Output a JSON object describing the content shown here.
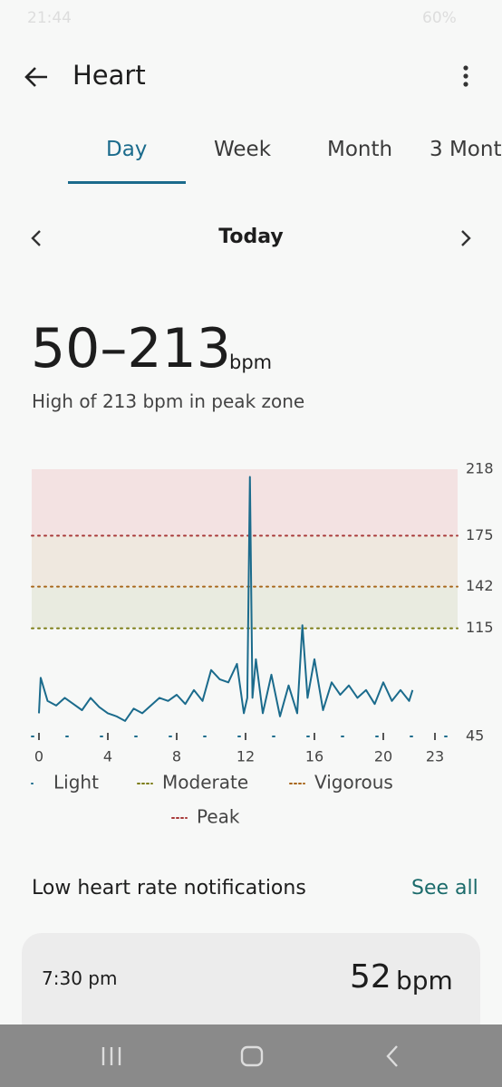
{
  "status_bar": {
    "time": "21:44",
    "battery": "60%"
  },
  "header": {
    "title": "Heart"
  },
  "tabs": [
    "Day",
    "Week",
    "Month",
    "3 Mont"
  ],
  "date_nav": {
    "label": "Today"
  },
  "summary": {
    "range": "50–213",
    "unit": "bpm",
    "description": "High of 213 bpm in peak zone"
  },
  "chart_data": {
    "type": "line",
    "x": [
      0,
      0.1,
      0.5,
      1,
      1.5,
      2,
      2.5,
      3,
      3.5,
      4,
      4.5,
      5,
      5.5,
      6,
      6.5,
      7,
      7.5,
      8,
      8.5,
      9,
      9.5,
      10,
      10.5,
      11,
      11.5,
      11.9,
      12.1,
      12.25,
      12.4,
      12.6,
      13,
      13.5,
      14,
      14.5,
      15,
      15.3,
      15.6,
      16,
      16.5,
      17,
      17.5,
      18,
      18.5,
      19,
      19.5,
      20,
      20.5,
      21,
      21.5,
      21.7
    ],
    "values": [
      60,
      83,
      68,
      65,
      70,
      66,
      62,
      70,
      64,
      60,
      58,
      55,
      63,
      60,
      65,
      70,
      68,
      72,
      66,
      75,
      68,
      88,
      82,
      80,
      92,
      60,
      70,
      213,
      70,
      95,
      60,
      85,
      58,
      78,
      60,
      117,
      70,
      95,
      62,
      80,
      72,
      78,
      70,
      75,
      66,
      80,
      68,
      75,
      68,
      75
    ],
    "color": "#1b6b8c",
    "xlim": [
      0,
      23
    ],
    "xticks": [
      0,
      4,
      8,
      12,
      16,
      20,
      23
    ],
    "ylim": [
      45,
      218
    ],
    "yticks": [
      218,
      175,
      142,
      115,
      45
    ],
    "zones": [
      {
        "name": "Light",
        "min": 45,
        "color": "#1b6b8c"
      },
      {
        "name": "Moderate",
        "min": 115,
        "color": "#7d7d16",
        "fill": "#e9ebe0"
      },
      {
        "name": "Vigorous",
        "min": 142,
        "color": "#a8661a",
        "fill": "#efe8df"
      },
      {
        "name": "Peak",
        "min": 175,
        "color": "#a83a3a",
        "fill": "#f3e2e2"
      }
    ]
  },
  "notifications": {
    "title": "Low heart rate notifications",
    "link": "See all",
    "items": [
      {
        "time": "7:30 pm",
        "value": 52,
        "unit": "bpm"
      }
    ]
  }
}
